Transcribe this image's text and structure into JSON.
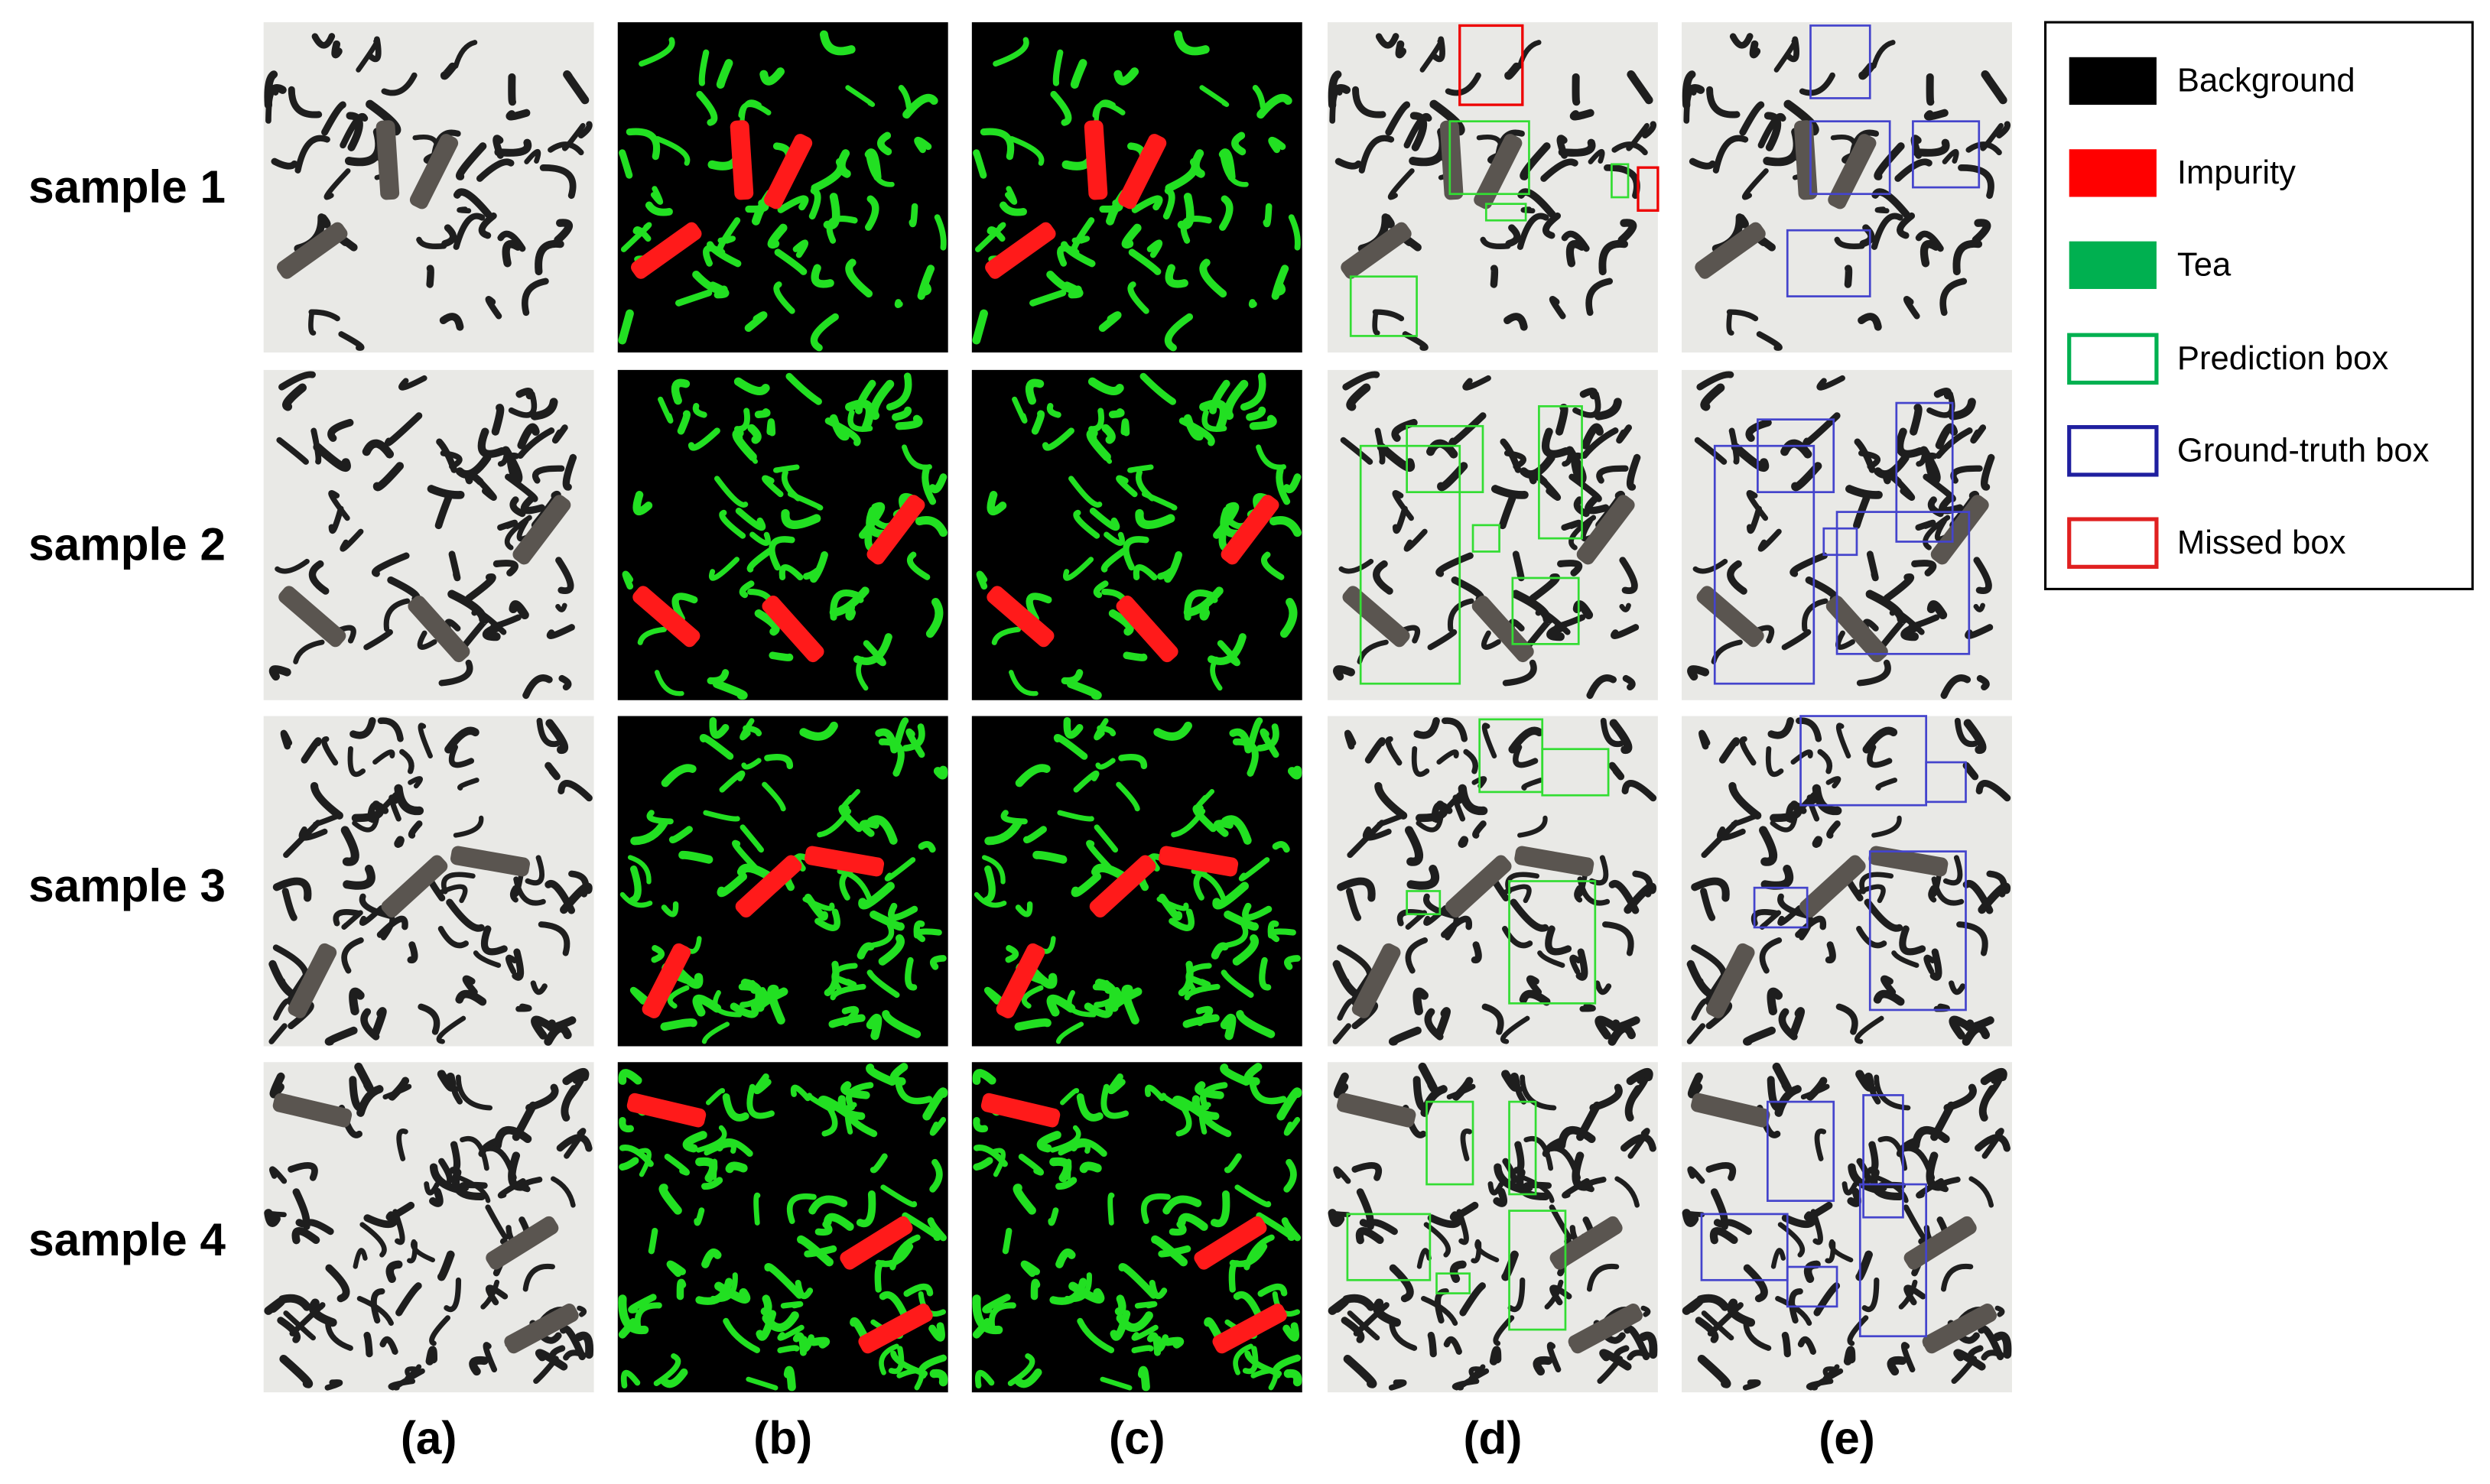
{
  "row_labels": [
    "sample 1",
    "sample 2",
    "sample 3",
    "sample 4"
  ],
  "column_labels": [
    "(a)",
    "(b)",
    "(c)",
    "(d)",
    "(e)"
  ],
  "legend": {
    "items": [
      "Background",
      "Impurity",
      "Tea",
      "Prediction box",
      "Ground-truth box",
      "Missed box"
    ]
  }
}
